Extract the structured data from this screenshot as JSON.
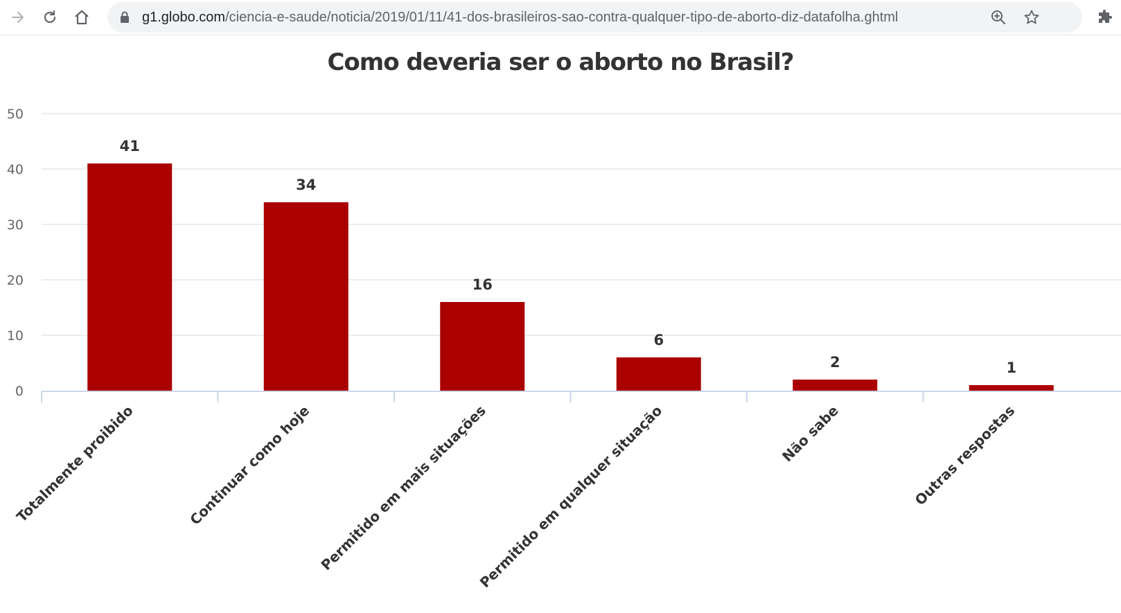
{
  "browser": {
    "url_host": "g1.globo.com",
    "url_path": "/ciencia-e-saude/noticia/2019/01/11/41-dos-brasileiros-sao-contra-qualquer-tipo-de-aborto-diz-datafolha.ghtml",
    "icons": [
      "forward-icon",
      "reload-icon",
      "home-icon",
      "lock-icon",
      "zoom-icon",
      "bookmark-star-icon",
      "extensions-icon"
    ]
  },
  "colors": {
    "bar": "#aa0000",
    "grid": "#e6e6e6",
    "axis": "#ccd6eb",
    "text": "#333333",
    "tick": "#666666"
  },
  "chart_data": {
    "type": "bar",
    "title": "Como deveria ser o aborto no Brasil?",
    "categories": [
      "Totalmente proibido",
      "Continuar como hoje",
      "Permitido em mais situações",
      "Permitido em qualquer situação",
      "Não sabe",
      "Outras respostas"
    ],
    "values": [
      41,
      34,
      16,
      6,
      2,
      1
    ],
    "data_labels": [
      "41",
      "34",
      "16",
      "6",
      "2",
      "1"
    ],
    "yticks": [
      0,
      10,
      20,
      30,
      40,
      50
    ],
    "ylim": [
      0,
      50
    ],
    "xlabel": "",
    "ylabel": "",
    "grid": true,
    "legend": "none"
  }
}
